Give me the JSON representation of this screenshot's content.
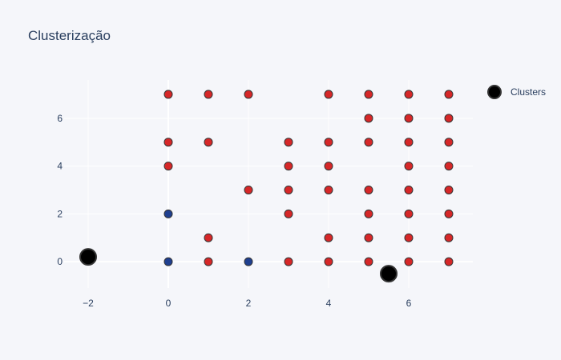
{
  "chart_data": {
    "type": "scatter",
    "title": "Clusterização",
    "xlabel": "",
    "ylabel": "",
    "xlim": [
      -2.6,
      7.6
    ],
    "ylim": [
      -1.1,
      7.6
    ],
    "x_ticks": [
      -2,
      0,
      2,
      4,
      6
    ],
    "x_tick_labels": [
      "−2",
      "0",
      "2",
      "4",
      "6"
    ],
    "y_ticks": [
      0,
      2,
      4,
      6
    ],
    "y_tick_labels": [
      "0",
      "2",
      "4",
      "6"
    ],
    "grid": true,
    "legend_position": "top-right",
    "colors": {
      "background": "#f5f6fa",
      "plot_background": "#f5f6fa",
      "red": "#d62728",
      "blue": "#1f3f8f",
      "clusters": "#000000",
      "marker_outline": "#333333"
    },
    "series": [
      {
        "name": "",
        "color": "#d62728",
        "points": [
          [
            0,
            7
          ],
          [
            1,
            7
          ],
          [
            2,
            7
          ],
          [
            4,
            7
          ],
          [
            5,
            7
          ],
          [
            6,
            7
          ],
          [
            7,
            7
          ],
          [
            5,
            6
          ],
          [
            6,
            6
          ],
          [
            7,
            6
          ],
          [
            0,
            5
          ],
          [
            1,
            5
          ],
          [
            3,
            5
          ],
          [
            4,
            5
          ],
          [
            5,
            5
          ],
          [
            6,
            5
          ],
          [
            7,
            5
          ],
          [
            0,
            4
          ],
          [
            3,
            4
          ],
          [
            4,
            4
          ],
          [
            6,
            4
          ],
          [
            7,
            4
          ],
          [
            2,
            3
          ],
          [
            3,
            3
          ],
          [
            4,
            3
          ],
          [
            5,
            3
          ],
          [
            6,
            3
          ],
          [
            7,
            3
          ],
          [
            3,
            2
          ],
          [
            5,
            2
          ],
          [
            6,
            2
          ],
          [
            7,
            2
          ],
          [
            1,
            1
          ],
          [
            4,
            1
          ],
          [
            5,
            1
          ],
          [
            6,
            1
          ],
          [
            7,
            1
          ],
          [
            1,
            0
          ],
          [
            3,
            0
          ],
          [
            4,
            0
          ],
          [
            5,
            0
          ],
          [
            6,
            0
          ],
          [
            7,
            0
          ]
        ]
      },
      {
        "name": "",
        "color": "#1f3f8f",
        "points": [
          [
            0,
            2
          ],
          [
            0,
            0
          ],
          [
            2,
            0
          ]
        ]
      },
      {
        "name": "Clusters",
        "color": "#000000",
        "points": [
          [
            -2.0,
            0.2
          ],
          [
            5.5,
            -0.5
          ]
        ]
      }
    ]
  }
}
